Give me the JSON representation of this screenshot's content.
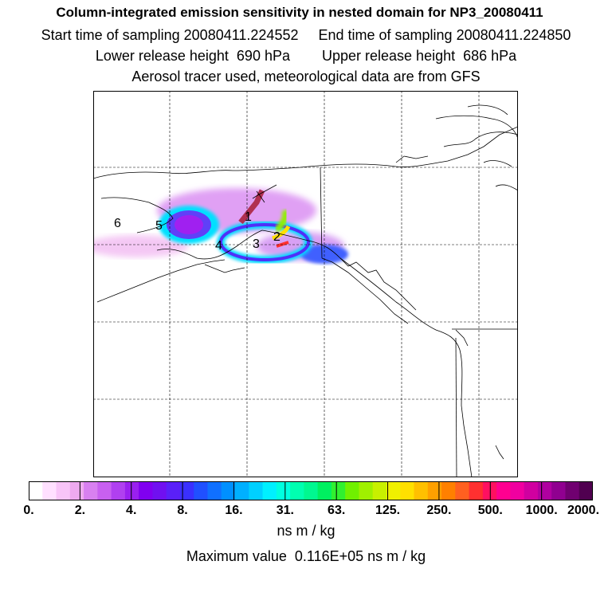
{
  "header": {
    "title": "Column-integrated emission sensitivity in nested domain for NP3_20080411",
    "line2": "Start time of sampling 20080411.224552     End time of sampling 20080411.224850",
    "line3": "Lower release height  690 hPa        Upper release height  686 hPa",
    "line4": "Aerosol tracer used, meteorological data are from GFS"
  },
  "colorbar": {
    "tick_labels": [
      "0.",
      "2.",
      "4.",
      "8.",
      "16.",
      "31.",
      "63.",
      "125.",
      "250.",
      "500.",
      "1000.",
      "2000."
    ],
    "colors": [
      "#ffffff",
      "#ffe0ff",
      "#f8c4f8",
      "#eeaaf0",
      "#d880f0",
      "#c860f0",
      "#b040f0",
      "#9a20f0",
      "#8000f0",
      "#7010f0",
      "#5a20f8",
      "#3a30ff",
      "#2050ff",
      "#1070ff",
      "#0090ff",
      "#00b0ff",
      "#00d0ff",
      "#00f0ff",
      "#00ffe0",
      "#00ffb0",
      "#00f890",
      "#00f060",
      "#30f030",
      "#70f000",
      "#a0f000",
      "#c8f000",
      "#f0f000",
      "#ffe000",
      "#ffc000",
      "#ffa000",
      "#ff8000",
      "#ff6020",
      "#ff3030",
      "#ff1060",
      "#ff0090",
      "#f000a0",
      "#d000a0",
      "#b000a0",
      "#900090",
      "#700070",
      "#500050"
    ],
    "units": "ns m / kg"
  },
  "max_value_text": "Maximum value  0.116E+05 ns m / kg",
  "map": {
    "day_labels": [
      "1",
      "2",
      "3",
      "4",
      "5",
      "6"
    ]
  }
}
